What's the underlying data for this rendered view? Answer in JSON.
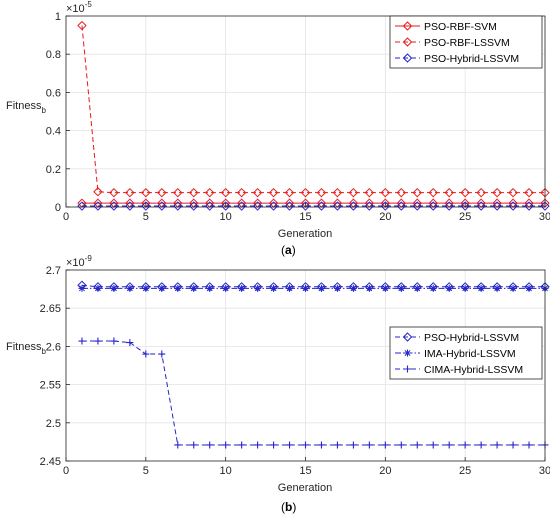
{
  "chart_data": [
    {
      "type": "line",
      "panel_label": "(a)",
      "xlabel": "Generation",
      "ylabel": "Fitness",
      "ylabel_sub": "b",
      "exponent_base": "×10",
      "exponent_power": "-5",
      "xlim": [
        0,
        30
      ],
      "ylim": [
        0,
        1
      ],
      "xticks": [
        0,
        5,
        10,
        15,
        20,
        25,
        30
      ],
      "yticks": [
        0,
        0.2,
        0.4,
        0.6,
        0.8,
        1
      ],
      "ytick_labels": [
        "0",
        "0.2",
        "0.4",
        "0.6",
        "0.8",
        "1"
      ],
      "grid": true,
      "legend_position": "top-right",
      "x": [
        1,
        2,
        3,
        4,
        5,
        6,
        7,
        8,
        9,
        10,
        11,
        12,
        13,
        14,
        15,
        16,
        17,
        18,
        19,
        20,
        21,
        22,
        23,
        24,
        25,
        26,
        27,
        28,
        29,
        30
      ],
      "series": [
        {
          "name": "PSO-RBF-SVM",
          "color": "#e8191c",
          "dash": "solid",
          "marker": "diamond",
          "values": [
            0.02,
            0.02,
            0.02,
            0.02,
            0.02,
            0.02,
            0.02,
            0.02,
            0.02,
            0.02,
            0.02,
            0.02,
            0.02,
            0.02,
            0.02,
            0.02,
            0.02,
            0.02,
            0.02,
            0.02,
            0.02,
            0.02,
            0.02,
            0.02,
            0.02,
            0.02,
            0.02,
            0.02,
            0.02,
            0.02
          ]
        },
        {
          "name": "PSO-RBF-LSSVM",
          "color": "#e8191c",
          "dash": "dashed",
          "marker": "diamond",
          "values": [
            0.95,
            0.08,
            0.075,
            0.075,
            0.075,
            0.075,
            0.075,
            0.075,
            0.075,
            0.075,
            0.075,
            0.075,
            0.075,
            0.075,
            0.075,
            0.075,
            0.075,
            0.075,
            0.075,
            0.075,
            0.075,
            0.075,
            0.075,
            0.075,
            0.075,
            0.075,
            0.075,
            0.075,
            0.075,
            0.075
          ]
        },
        {
          "name": "PSO-Hybrid-LSSVM",
          "color": "#2525c8",
          "dash": "dashed",
          "marker": "diamond",
          "values": [
            0.005,
            0.005,
            0.005,
            0.005,
            0.005,
            0.005,
            0.005,
            0.005,
            0.005,
            0.005,
            0.005,
            0.005,
            0.005,
            0.005,
            0.005,
            0.005,
            0.005,
            0.005,
            0.005,
            0.005,
            0.005,
            0.005,
            0.005,
            0.005,
            0.005,
            0.005,
            0.005,
            0.005,
            0.005,
            0.005
          ]
        }
      ]
    },
    {
      "type": "line",
      "panel_label": "(b)",
      "xlabel": "Generation",
      "ylabel": "Fitness",
      "ylabel_sub": "b",
      "exponent_base": "×10",
      "exponent_power": "-9",
      "xlim": [
        0,
        30
      ],
      "ylim": [
        2.45,
        2.7
      ],
      "xticks": [
        0,
        5,
        10,
        15,
        20,
        25,
        30
      ],
      "yticks": [
        2.45,
        2.5,
        2.55,
        2.6,
        2.65,
        2.7
      ],
      "ytick_labels": [
        "2.45",
        "2.5",
        "2.55",
        "2.6",
        "2.65",
        "2.7"
      ],
      "grid": true,
      "legend_position": "right",
      "x": [
        1,
        2,
        3,
        4,
        5,
        6,
        7,
        8,
        9,
        10,
        11,
        12,
        13,
        14,
        15,
        16,
        17,
        18,
        19,
        20,
        21,
        22,
        23,
        24,
        25,
        26,
        27,
        28,
        29,
        30
      ],
      "series": [
        {
          "name": "PSO-Hybrid-LSSVM",
          "color": "#2525c8",
          "dash": "dashed",
          "marker": "diamond",
          "values": [
            2.68,
            2.678,
            2.678,
            2.678,
            2.678,
            2.678,
            2.678,
            2.678,
            2.678,
            2.678,
            2.678,
            2.678,
            2.678,
            2.678,
            2.678,
            2.678,
            2.678,
            2.678,
            2.678,
            2.678,
            2.678,
            2.678,
            2.678,
            2.678,
            2.678,
            2.678,
            2.678,
            2.678,
            2.678,
            2.678
          ]
        },
        {
          "name": "IMA-Hybrid-LSSVM",
          "color": "#2525c8",
          "dash": "dashdot",
          "marker": "asterisk",
          "values": [
            2.676,
            2.676,
            2.676,
            2.676,
            2.676,
            2.676,
            2.676,
            2.676,
            2.676,
            2.676,
            2.676,
            2.676,
            2.676,
            2.676,
            2.676,
            2.676,
            2.676,
            2.676,
            2.676,
            2.676,
            2.676,
            2.676,
            2.676,
            2.676,
            2.676,
            2.676,
            2.676,
            2.676,
            2.676,
            2.676
          ]
        },
        {
          "name": "CIMA-Hybrid-LSSVM",
          "color": "#2525c8",
          "dash": "dashed",
          "marker": "plus",
          "values": [
            2.607,
            2.607,
            2.607,
            2.605,
            2.59,
            2.59,
            2.471,
            2.471,
            2.471,
            2.471,
            2.471,
            2.471,
            2.471,
            2.471,
            2.471,
            2.471,
            2.471,
            2.471,
            2.471,
            2.471,
            2.471,
            2.471,
            2.471,
            2.471,
            2.471,
            2.471,
            2.471,
            2.471,
            2.471,
            2.471
          ]
        }
      ]
    }
  ]
}
